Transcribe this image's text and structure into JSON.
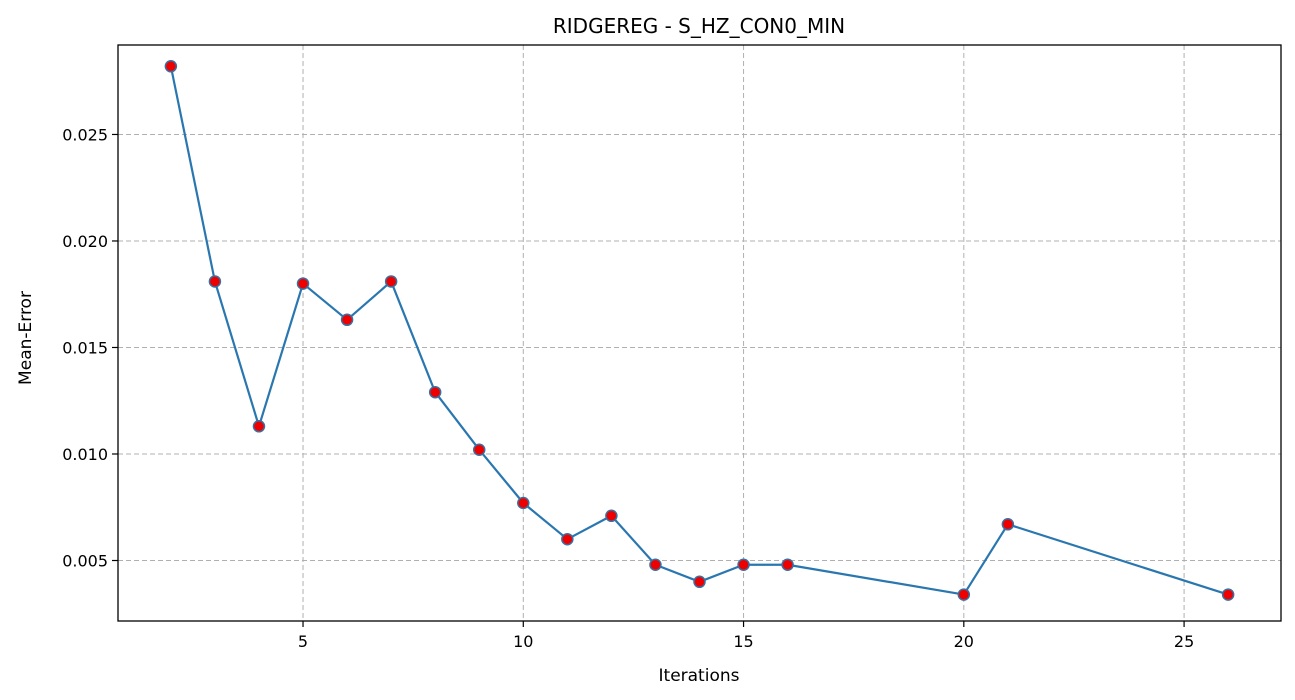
{
  "chart_data": {
    "type": "line",
    "title": "RIDGEREG - S_HZ_CON0_MIN",
    "xlabel": "Iterations",
    "ylabel": "Mean-Error",
    "xlim": [
      0.8,
      27.2
    ],
    "ylim": [
      0.00216,
      0.0292
    ],
    "xticks": [
      5,
      10,
      15,
      20,
      25
    ],
    "xtick_labels": [
      "5",
      "10",
      "15",
      "20",
      "25"
    ],
    "yticks": [
      0.005,
      0.01,
      0.015,
      0.02,
      0.025
    ],
    "ytick_labels": [
      "0.005",
      "0.010",
      "0.015",
      "0.020",
      "0.025"
    ],
    "grid": true,
    "grid_style": "dashed",
    "colors": {
      "line": "#2a77b0",
      "marker_fill": "#ee0000",
      "marker_edge": "#3a6f9f",
      "grid": "#b0b0b0"
    },
    "series": [
      {
        "x": [
          2,
          3,
          4,
          5,
          6,
          7,
          8,
          9,
          10,
          11,
          12,
          13,
          14,
          15,
          16,
          20,
          21,
          26
        ],
        "y": [
          0.0282,
          0.0181,
          0.0113,
          0.018,
          0.0163,
          0.0181,
          0.0129,
          0.0102,
          0.0077,
          0.006,
          0.0071,
          0.0048,
          0.004,
          0.0048,
          0.0048,
          0.0034,
          0.0067,
          0.0034
        ]
      }
    ]
  }
}
